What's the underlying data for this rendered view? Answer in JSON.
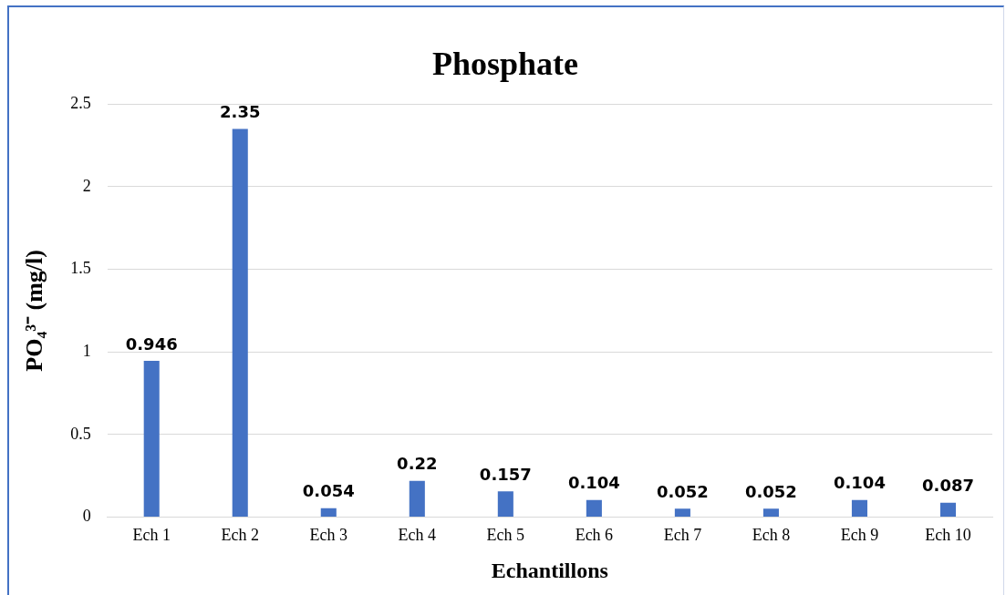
{
  "chart_data": {
    "type": "bar",
    "title": "Phosphate",
    "xlabel": "Echantillons",
    "ylabel": "PO₄³⁻ (mg/l)",
    "categories": [
      "Ech 1",
      "Ech 2",
      "Ech 3",
      "Ech 4",
      "Ech 5",
      "Ech 6",
      "Ech 7",
      "Ech 8",
      "Ech 9",
      "Ech 10"
    ],
    "values": [
      0.946,
      2.35,
      0.054,
      0.22,
      0.157,
      0.104,
      0.052,
      0.052,
      0.104,
      0.087
    ],
    "color": "#4472c4",
    "ylim": [
      0,
      2.5
    ],
    "yticks": [
      0,
      0.5,
      1,
      1.5,
      2,
      2.5
    ],
    "grid": "y",
    "data_labels": true
  }
}
